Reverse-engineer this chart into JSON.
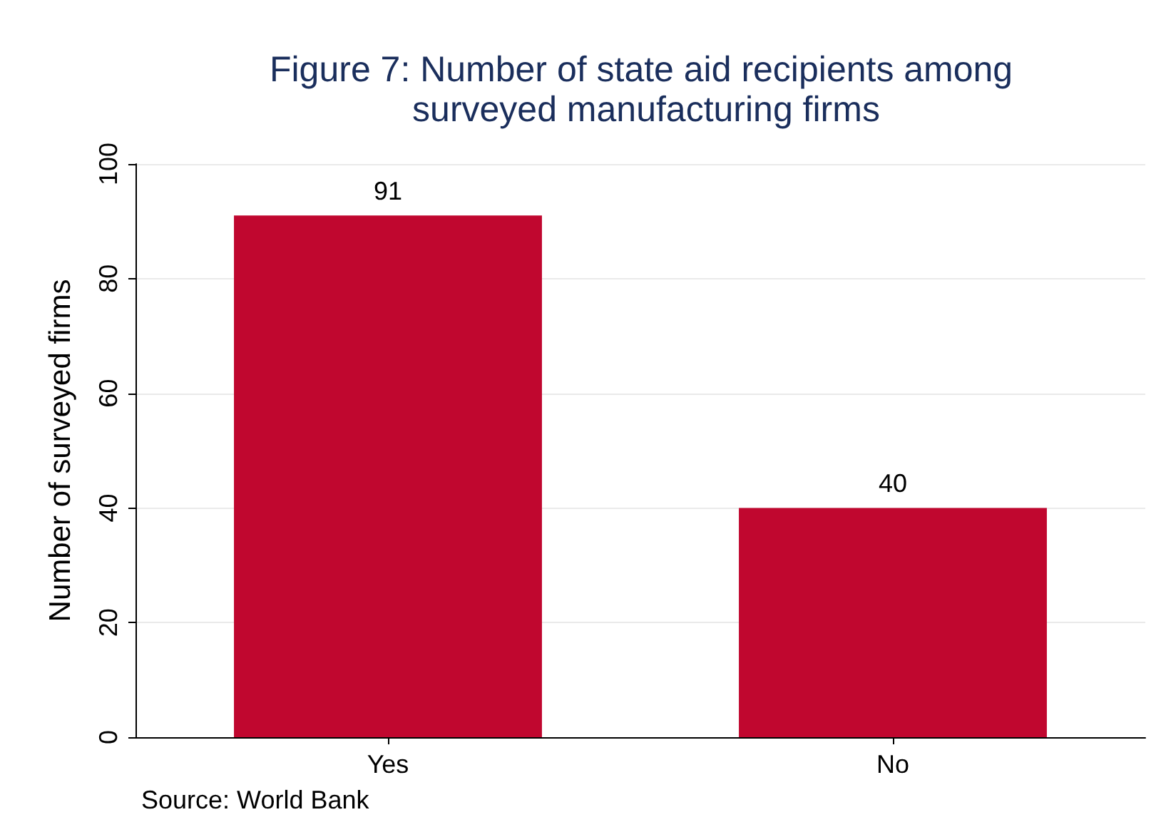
{
  "chart_data": {
    "type": "bar",
    "title": "Figure 7: Number of state aid recipients among surveyed manufacturing firms",
    "ylabel": "Number of surveyed firms",
    "categories": [
      "Yes",
      "No"
    ],
    "values": [
      91,
      40
    ],
    "color": "#c0072f",
    "ylim": [
      0,
      100
    ],
    "yticks": [
      0,
      20,
      40,
      60,
      80,
      100
    ],
    "grid": "y",
    "data_labels": true,
    "annotations": [
      "Source: World Bank"
    ]
  }
}
